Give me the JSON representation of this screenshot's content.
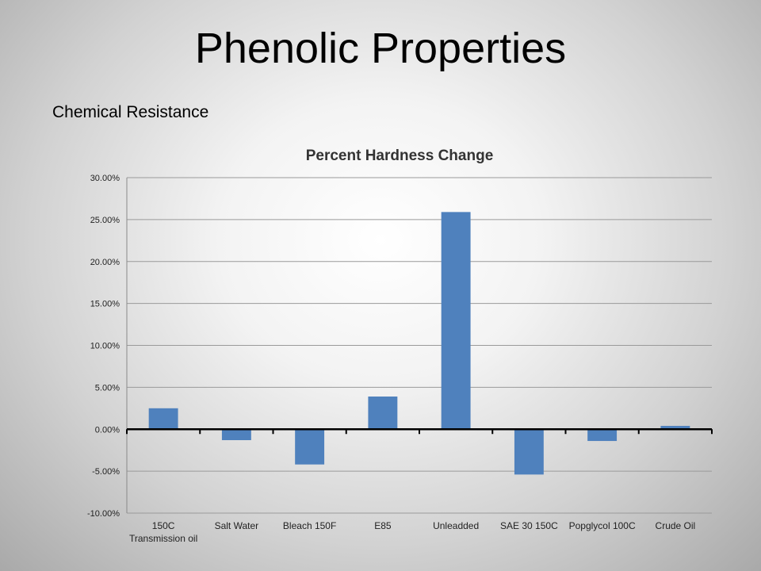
{
  "slide": {
    "title": "Phenolic Properties",
    "subtitle": "Chemical Resistance"
  },
  "chart_data": {
    "type": "bar",
    "title": "Percent Hardness Change",
    "categories": [
      "150C Transmission oil",
      "Salt Water",
      "Bleach 150F",
      "E85",
      "Unleadded",
      "SAE 30 150C",
      "Popglycol 100C",
      "Crude Oil"
    ],
    "category_lines": [
      [
        "150C",
        "Transmission oil"
      ],
      [
        "Salt Water"
      ],
      [
        "Bleach 150F"
      ],
      [
        "E85"
      ],
      [
        "Unleadded"
      ],
      [
        "SAE 30 150C"
      ],
      [
        "Popglycol 100C"
      ],
      [
        "Crude Oil"
      ]
    ],
    "values": [
      2.5,
      -1.3,
      -4.2,
      3.9,
      25.9,
      -5.4,
      -1.4,
      0.4
    ],
    "ylim": [
      -10,
      30
    ],
    "yticks": [
      30,
      25,
      20,
      15,
      10,
      5,
      0,
      -5,
      -10
    ],
    "ytick_labels": [
      "30.00%",
      "25.00%",
      "20.00%",
      "15.00%",
      "10.00%",
      "5.00%",
      "0.00%",
      "-5.00%",
      "-10.00%"
    ],
    "grid": true,
    "legend": "none",
    "bar_color": "#4f81bd",
    "xlabel": "",
    "ylabel": ""
  }
}
